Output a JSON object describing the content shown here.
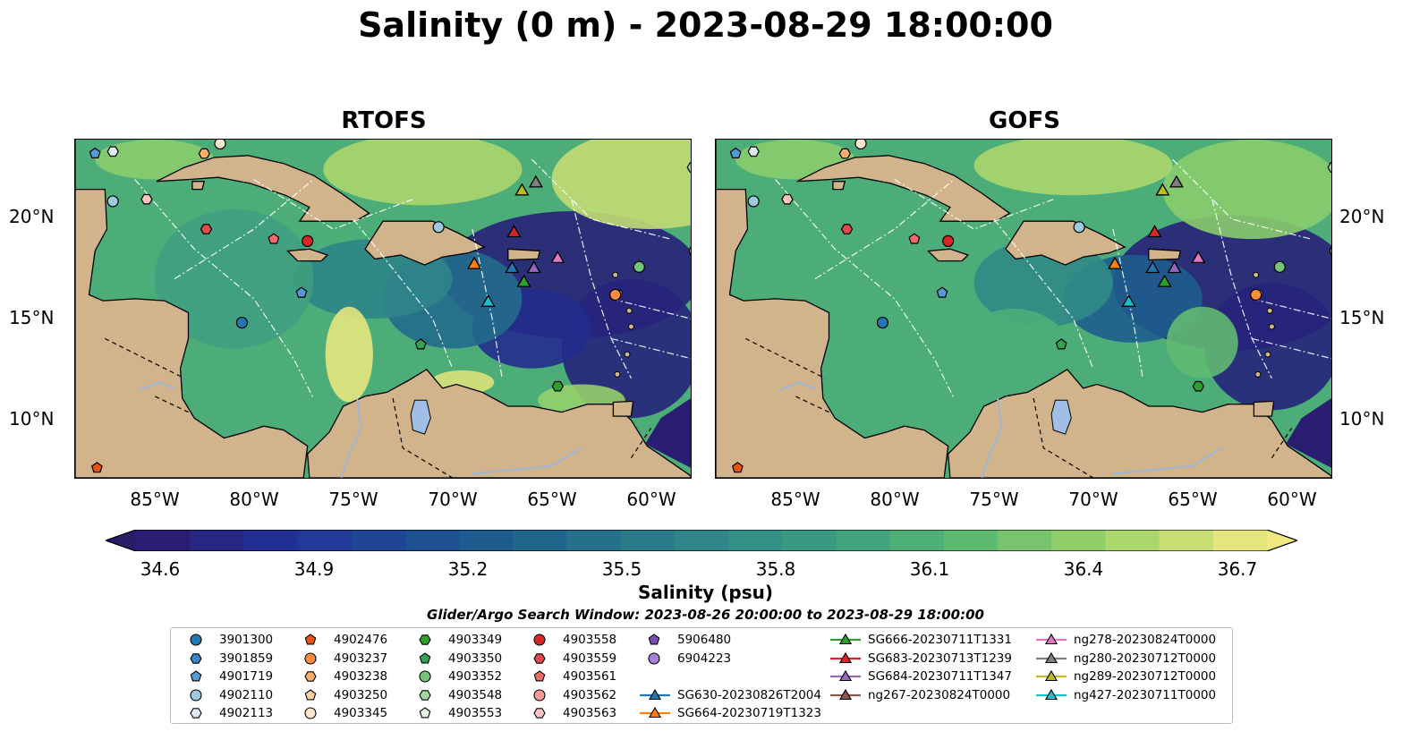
{
  "title": "Salinity (0 m) - 2023-08-29 18:00:00",
  "panels": [
    {
      "title": "RTOFS"
    },
    {
      "title": "GOFS"
    }
  ],
  "axes": {
    "x_ticks": [
      "85°W",
      "80°W",
      "75°W",
      "70°W",
      "65°W",
      "60°W"
    ],
    "y_ticks": [
      "20°N",
      "15°N",
      "10°N"
    ],
    "lon_range": [
      -89,
      -58
    ],
    "lat_range": [
      7,
      24
    ]
  },
  "colorbar": {
    "label": "Salinity (psu)",
    "ticks": [
      "34.6",
      "34.9",
      "35.2",
      "35.5",
      "35.8",
      "36.1",
      "36.4",
      "36.7"
    ],
    "range": [
      34.6,
      36.7
    ],
    "colormap": "haline",
    "extend": "both"
  },
  "search_window": "Glider/Argo Search Window: 2023-08-26 20:00:00 to 2023-08-29 18:00:00",
  "colors": {
    "land": "#d2b48c",
    "lake": "#a0bfe6",
    "low_salinity": "#2c1e6b",
    "high_salinity": "#f0e680"
  },
  "legend": {
    "argo": [
      {
        "id": "3901300",
        "marker": "circle",
        "color": "#1f77b4"
      },
      {
        "id": "3901859",
        "marker": "hexagon",
        "color": "#3f84c0"
      },
      {
        "id": "4901719",
        "marker": "pentagon",
        "color": "#5599d8"
      },
      {
        "id": "4902110",
        "marker": "circle",
        "color": "#9ecae1"
      },
      {
        "id": "4902113",
        "marker": "hexagon",
        "color": "#deebf7"
      },
      {
        "id": "4902476",
        "marker": "pentagon",
        "color": "#e6550d"
      },
      {
        "id": "4903237",
        "marker": "circle",
        "color": "#fd8d3c"
      },
      {
        "id": "4903238",
        "marker": "hexagon",
        "color": "#fdae6b"
      },
      {
        "id": "4903250",
        "marker": "pentagon",
        "color": "#fdd0a2"
      },
      {
        "id": "4903345",
        "marker": "circle",
        "color": "#fee6ce"
      },
      {
        "id": "4903349",
        "marker": "hexagon",
        "color": "#2ca02c"
      },
      {
        "id": "4903350",
        "marker": "pentagon",
        "color": "#31a354"
      },
      {
        "id": "4903352",
        "marker": "circle",
        "color": "#74c476"
      },
      {
        "id": "4903548",
        "marker": "hexagon",
        "color": "#a1d99b"
      },
      {
        "id": "4903553",
        "marker": "pentagon",
        "color": "#e5f5e0"
      },
      {
        "id": "4903558",
        "marker": "circle",
        "color": "#d62728"
      },
      {
        "id": "4903559",
        "marker": "hexagon",
        "color": "#e34a4a"
      },
      {
        "id": "4903561",
        "marker": "pentagon",
        "color": "#f06a6a"
      },
      {
        "id": "4903562",
        "marker": "circle",
        "color": "#fa9a9a"
      },
      {
        "id": "4903563",
        "marker": "hexagon",
        "color": "#fcc5c0"
      },
      {
        "id": "5906480",
        "marker": "pentagon",
        "color": "#7b4fb0"
      },
      {
        "id": "6904223",
        "marker": "circle",
        "color": "#a77fd6"
      }
    ],
    "gliders": [
      {
        "id": "SG630-20230826T2004",
        "color": "#1f77b4"
      },
      {
        "id": "SG664-20230719T1323",
        "color": "#ff7f0e"
      },
      {
        "id": "SG666-20230711T1331",
        "color": "#2ca02c"
      },
      {
        "id": "SG683-20230713T1239",
        "color": "#d62728"
      },
      {
        "id": "SG684-20230711T1347",
        "color": "#9467bd"
      },
      {
        "id": "ng267-20230824T0000",
        "color": "#8c564b"
      },
      {
        "id": "ng278-20230824T0000",
        "color": "#e377c2"
      },
      {
        "id": "ng280-20230712T0000",
        "color": "#7f7f7f"
      },
      {
        "id": "ng289-20230712T0000",
        "color": "#bcbd22"
      },
      {
        "id": "ng427-20230711T0000",
        "color": "#17becf"
      }
    ]
  }
}
